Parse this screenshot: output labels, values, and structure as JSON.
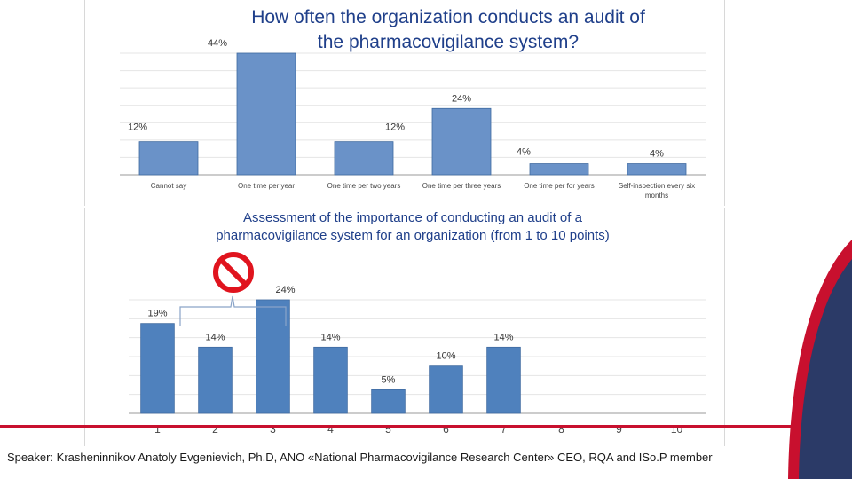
{
  "chart_data": [
    {
      "type": "bar",
      "title": "How often the organization conducts an audit of\nthe pharmacovigilance system?",
      "categories": [
        "Cannot say",
        "One time per year",
        "One time per two years",
        "One time per three years",
        "One time per for years",
        "Self-inspection every six months"
      ],
      "values": [
        12,
        44,
        12,
        24,
        4,
        4
      ],
      "value_labels": [
        "12%",
        "44%",
        "12%",
        "24%",
        "4%",
        "4%"
      ],
      "ylim": [
        0,
        44
      ],
      "grid": true,
      "bar_color": "#6a92c8"
    },
    {
      "type": "bar",
      "title": "Assessment of the importance of conducting an audit of a\npharmacovigilance system for an organization (from 1 to 10 points)",
      "categories": [
        "1",
        "2",
        "3",
        "4",
        "5",
        "6",
        "7",
        "8",
        "9",
        "10"
      ],
      "values": [
        19,
        14,
        24,
        14,
        5,
        10,
        14,
        0,
        0,
        0
      ],
      "value_labels": [
        "19%",
        "14%",
        "24%",
        "14%",
        "5%",
        "10%",
        "14%",
        "",
        "",
        ""
      ],
      "ylim": [
        0,
        24
      ],
      "grid": true,
      "bar_color": "#4f81bd"
    }
  ],
  "footer": {
    "text": "Speaker: Krasheninnikov Anatoly Evgenievich, Ph.D, ANO «National Pharmacovigilance Research Center» CEO, RQA and ISo.P member"
  },
  "colors": {
    "title": "#1f3f8a",
    "accent_red": "#c8102e",
    "accent_navy": "#2b3a67"
  },
  "icons": {
    "prohibition": "no-sign-icon"
  }
}
